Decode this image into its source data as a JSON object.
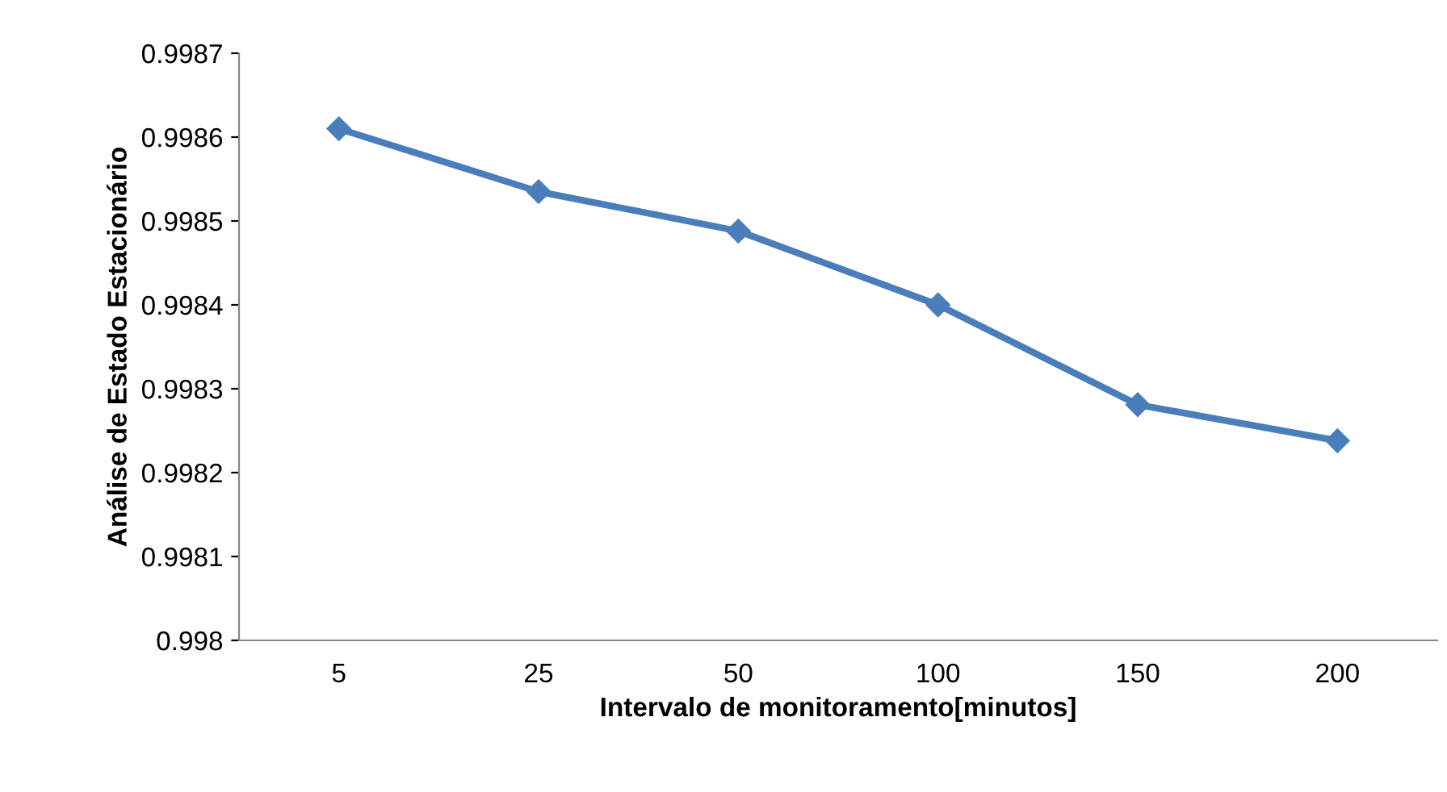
{
  "chart_data": {
    "type": "line",
    "xlabel": "Intervalo de monitoramento[minutos]",
    "ylabel": "Análise de Estado Estacionário",
    "categories": [
      "5",
      "25",
      "50",
      "100",
      "150",
      "200"
    ],
    "series": [
      {
        "color": "#4a7ebb",
        "values": [
          0.99861,
          0.998535,
          0.998488,
          0.9984,
          0.998281,
          0.998238
        ]
      }
    ],
    "ylim": [
      0.998,
      0.9987
    ],
    "yticks": [
      0.998,
      0.9981,
      0.9982,
      0.9983,
      0.9984,
      0.9985,
      0.9986,
      0.9987
    ],
    "grid": false,
    "legend": false,
    "marker": "diamond",
    "line_style": "solid"
  }
}
